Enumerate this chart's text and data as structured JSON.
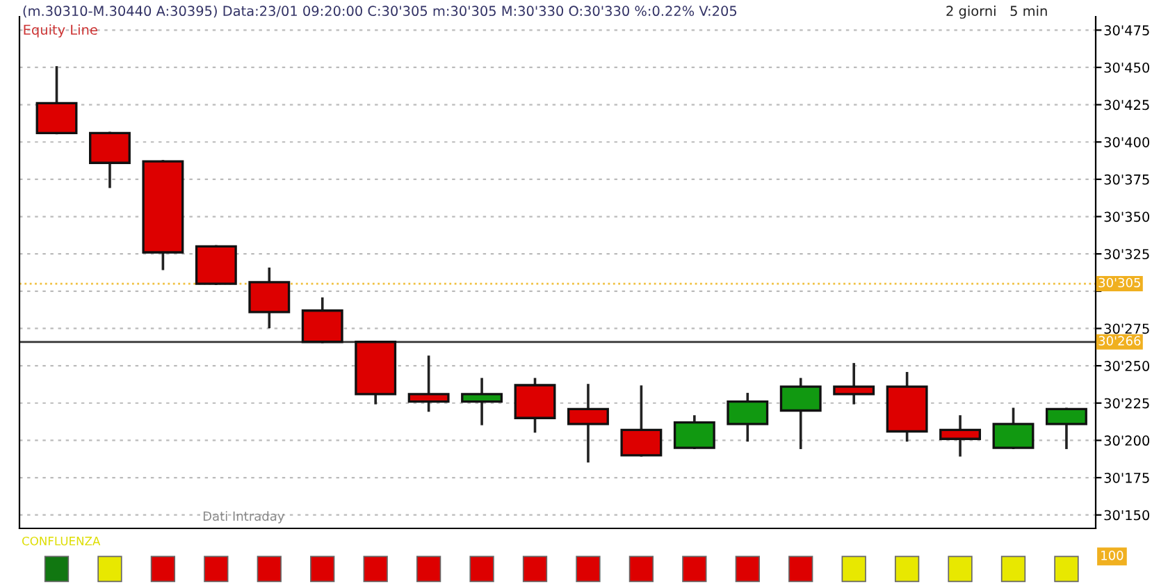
{
  "chart_data": [
    {
      "type": "candlestick",
      "title": "(m.30310-M.30440 A:30395) Data:23/01 09:20:00 C:30'305 m:30'305 M:30'330 O:30'330 %:0.22% V:205",
      "subtitle": "2 giorni   5 min",
      "annotations": [
        "Equity Line",
        "Dati Intraday"
      ],
      "categories": [
        null,
        null,
        null,
        null,
        null,
        null,
        null,
        null,
        null,
        null,
        null,
        null,
        null,
        null,
        null,
        null,
        null,
        null,
        null,
        null
      ],
      "ohlc": [
        [
          30426,
          30450,
          30406,
          30406
        ],
        [
          30406,
          30406,
          30370,
          30386
        ],
        [
          30387,
          30387,
          30315,
          30326
        ],
        [
          30330,
          30330,
          30305,
          30305
        ],
        [
          30306,
          30315,
          30276,
          30286
        ],
        [
          30287,
          30295,
          30266,
          30266
        ],
        [
          30266,
          30266,
          30225,
          30231
        ],
        [
          30231,
          30256,
          30220,
          30226
        ],
        [
          30226,
          30241,
          30211,
          30231
        ],
        [
          30237,
          30241,
          30206,
          30215
        ],
        [
          30221,
          30237,
          30186,
          30211
        ],
        [
          30207,
          30236,
          30190,
          30190
        ],
        [
          30195,
          30216,
          30195,
          30212
        ],
        [
          30211,
          30231,
          30200,
          30226
        ],
        [
          30220,
          30241,
          30195,
          30236
        ],
        [
          30236,
          30251,
          30225,
          30231
        ],
        [
          30236,
          30245,
          30200,
          30206
        ],
        [
          30207,
          30216,
          30190,
          30201
        ],
        [
          30195,
          30221,
          30195,
          30211
        ],
        [
          30211,
          30221,
          30195,
          30221
        ]
      ],
      "colors": [
        "#dd0000",
        "#dd0000",
        "#dd0000",
        "#dd0000",
        "#dd0000",
        "#dd0000",
        "#dd0000",
        "#dd0000",
        "#119911",
        "#dd0000",
        "#dd0000",
        "#dd0000",
        "#119911",
        "#119911",
        "#119911",
        "#dd0000",
        "#dd0000",
        "#dd0000",
        "#119911",
        "#119911"
      ],
      "ylim": [
        30141,
        30484
      ],
      "yticks": [
        {
          "value": 30150,
          "label": "30'150"
        },
        {
          "value": 30175,
          "label": "30'175"
        },
        {
          "value": 30200,
          "label": "30'200"
        },
        {
          "value": 30225,
          "label": "30'225"
        },
        {
          "value": 30250,
          "label": "30'250"
        },
        {
          "value": 30275,
          "label": "30'275"
        },
        {
          "value": 30300,
          "label": null
        },
        {
          "value": 30325,
          "label": "30'325"
        },
        {
          "value": 30350,
          "label": "30'350"
        },
        {
          "value": 30375,
          "label": "30'375"
        },
        {
          "value": 30400,
          "label": "30'400"
        },
        {
          "value": 30425,
          "label": "30'425"
        },
        {
          "value": 30450,
          "label": "30'450"
        },
        {
          "value": 30475,
          "label": "30'475"
        }
      ],
      "grid": "y",
      "ref_lines": [
        {
          "axis": "y",
          "value": 30266,
          "label": "30'266",
          "color": "#333333",
          "line_style": "solid"
        },
        {
          "axis": "y",
          "value": 30305,
          "label": "30'305",
          "color": "#f0c040",
          "line_style": "dotted"
        }
      ]
    },
    {
      "type": "other",
      "title": "CONFLUENZA",
      "annotations": [
        "100"
      ],
      "colors": [
        "#117711",
        "#e8e800",
        "#dd0000",
        "#dd0000",
        "#dd0000",
        "#dd0000",
        "#dd0000",
        "#dd0000",
        "#dd0000",
        "#dd0000",
        "#dd0000",
        "#dd0000",
        "#dd0000",
        "#dd0000",
        "#dd0000",
        "#e8e800",
        "#e8e800",
        "#e8e800",
        "#e8e800",
        "#e8e800"
      ]
    }
  ]
}
